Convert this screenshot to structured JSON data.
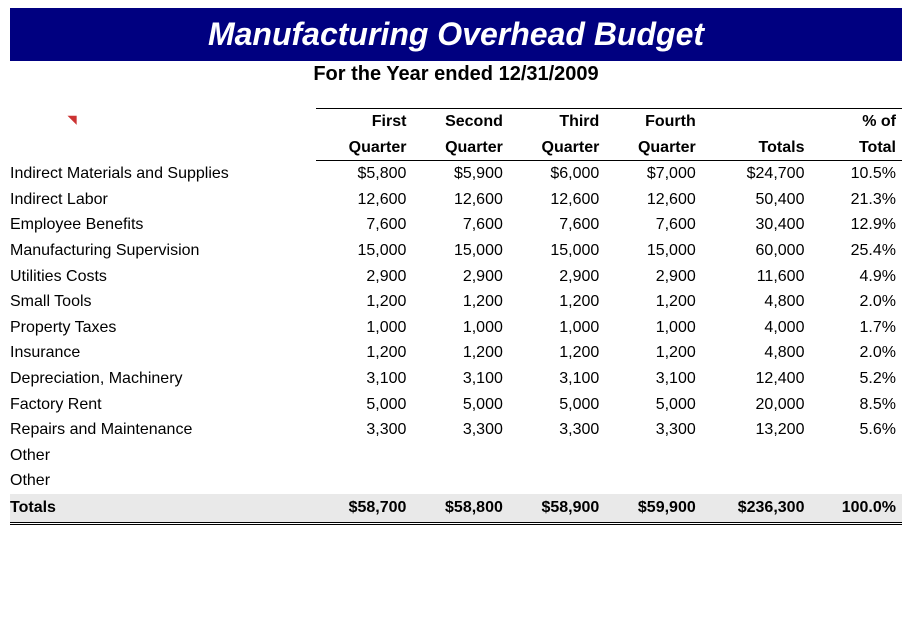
{
  "title": "Manufacturing Overhead Budget",
  "subtitle": "For the Year ended 12/31/2009",
  "columns_line1": [
    "First",
    "Second",
    "Third",
    "Fourth",
    "",
    "% of"
  ],
  "columns_line2": [
    "Quarter",
    "Quarter",
    "Quarter",
    "Quarter",
    "Totals",
    "Total"
  ],
  "rows": [
    {
      "label": "Indirect Materials and Supplies",
      "q1": "$5,800",
      "q2": "$5,900",
      "q3": "$6,000",
      "q4": "$7,000",
      "total": "$24,700",
      "pct": "10.5%"
    },
    {
      "label": "Indirect Labor",
      "q1": "12,600",
      "q2": "12,600",
      "q3": "12,600",
      "q4": "12,600",
      "total": "50,400",
      "pct": "21.3%"
    },
    {
      "label": "Employee Benefits",
      "q1": "7,600",
      "q2": "7,600",
      "q3": "7,600",
      "q4": "7,600",
      "total": "30,400",
      "pct": "12.9%"
    },
    {
      "label": "Manufacturing Supervision",
      "q1": "15,000",
      "q2": "15,000",
      "q3": "15,000",
      "q4": "15,000",
      "total": "60,000",
      "pct": "25.4%"
    },
    {
      "label": "Utilities Costs",
      "q1": "2,900",
      "q2": "2,900",
      "q3": "2,900",
      "q4": "2,900",
      "total": "11,600",
      "pct": "4.9%"
    },
    {
      "label": "Small Tools",
      "q1": "1,200",
      "q2": "1,200",
      "q3": "1,200",
      "q4": "1,200",
      "total": "4,800",
      "pct": "2.0%"
    },
    {
      "label": "Property Taxes",
      "q1": "1,000",
      "q2": "1,000",
      "q3": "1,000",
      "q4": "1,000",
      "total": "4,000",
      "pct": "1.7%"
    },
    {
      "label": "Insurance",
      "q1": "1,200",
      "q2": "1,200",
      "q3": "1,200",
      "q4": "1,200",
      "total": "4,800",
      "pct": "2.0%"
    },
    {
      "label": "Depreciation, Machinery",
      "q1": "3,100",
      "q2": "3,100",
      "q3": "3,100",
      "q4": "3,100",
      "total": "12,400",
      "pct": "5.2%"
    },
    {
      "label": "Factory Rent",
      "q1": "5,000",
      "q2": "5,000",
      "q3": "5,000",
      "q4": "5,000",
      "total": "20,000",
      "pct": "8.5%"
    },
    {
      "label": "Repairs and Maintenance",
      "q1": "3,300",
      "q2": "3,300",
      "q3": "3,300",
      "q4": "3,300",
      "total": "13,200",
      "pct": "5.6%"
    },
    {
      "label": "Other",
      "q1": "",
      "q2": "",
      "q3": "",
      "q4": "",
      "total": "",
      "pct": ""
    },
    {
      "label": "Other",
      "q1": "",
      "q2": "",
      "q3": "",
      "q4": "",
      "total": "",
      "pct": ""
    }
  ],
  "totals": {
    "label": "Totals",
    "q1": "$58,700",
    "q2": "$58,800",
    "q3": "$58,900",
    "q4": "$59,900",
    "total": "$236,300",
    "pct": "100.0%"
  },
  "colors": {
    "title_bg": "#000080",
    "title_fg": "#ffffff",
    "totals_bg": "#e9e9e9",
    "border": "#000000",
    "comment_mark": "#cc3333"
  }
}
